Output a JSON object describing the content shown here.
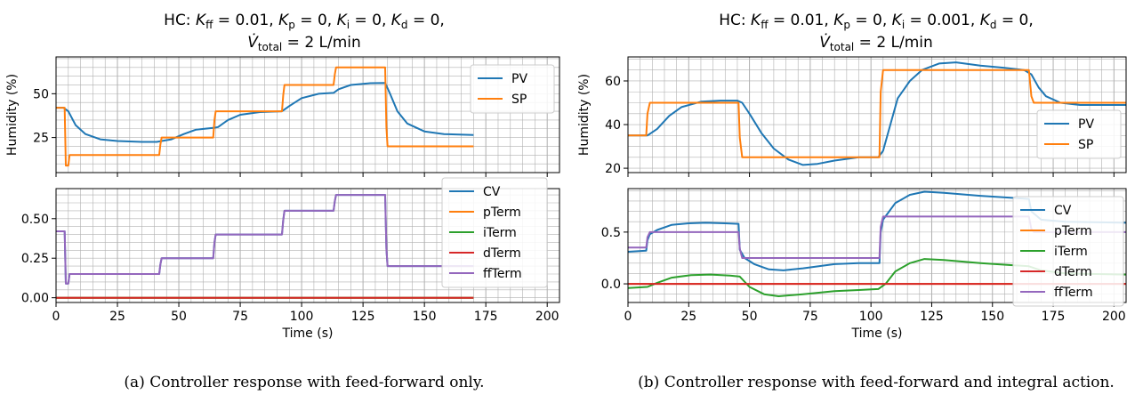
{
  "captions": [
    "(a) Controller response with feed-forward only.",
    "(b) Controller response with feed-forward and integral action."
  ],
  "colors": {
    "PV": "#1f77b4",
    "SP": "#ff7f0e",
    "CV": "#1f77b4",
    "pTerm": "#ff7f0e",
    "iTerm": "#2ca02c",
    "dTerm": "#d62728",
    "ffTerm": "#9467bd",
    "grid": "#b0b0b0"
  },
  "chart_data": [
    {
      "type": "line",
      "panel": "a-top",
      "title_line1": "HC: K_ff = 0.01, K_p = 0, K_i = 0, K_d = 0,",
      "title_line2": "V̇_total = 2 L/min",
      "ylabel": "Humidity (%)",
      "xlabel": "",
      "xlim": [
        0,
        205
      ],
      "ylim": [
        5,
        71
      ],
      "yticks": [
        25,
        50
      ],
      "grid": true,
      "legend_position": "upper right",
      "series": [
        {
          "name": "PV",
          "points": [
            [
              0,
              42
            ],
            [
              3,
              42
            ],
            [
              5,
              40
            ],
            [
              8,
              32
            ],
            [
              12,
              27
            ],
            [
              18,
              24
            ],
            [
              25,
              23
            ],
            [
              35,
              22.5
            ],
            [
              41,
              22.5
            ],
            [
              43,
              23
            ],
            [
              47,
              24
            ],
            [
              52,
              27
            ],
            [
              57,
              29.5
            ],
            [
              64,
              30.5
            ],
            [
              66,
              31
            ],
            [
              70,
              35
            ],
            [
              75,
              38
            ],
            [
              83,
              39.5
            ],
            [
              92,
              40
            ],
            [
              95,
              43
            ],
            [
              100,
              47.5
            ],
            [
              107,
              50
            ],
            [
              113,
              50.5
            ],
            [
              115,
              52.5
            ],
            [
              120,
              55
            ],
            [
              128,
              56
            ],
            [
              134,
              56.2
            ],
            [
              136,
              50
            ],
            [
              139,
              40
            ],
            [
              143,
              33
            ],
            [
              150,
              28.5
            ],
            [
              158,
              27
            ],
            [
              170,
              26.5
            ]
          ]
        },
        {
          "name": "SP",
          "points": [
            [
              0,
              42
            ],
            [
              3.5,
              42
            ],
            [
              4,
              9
            ],
            [
              5,
              9
            ],
            [
              5.5,
              15
            ],
            [
              42,
              15
            ],
            [
              42.5,
              21
            ],
            [
              43,
              25
            ],
            [
              64,
              25
            ],
            [
              64.5,
              35
            ],
            [
              65,
              40
            ],
            [
              92,
              40
            ],
            [
              92.5,
              49
            ],
            [
              93,
              55
            ],
            [
              113,
              55
            ],
            [
              113.5,
              61
            ],
            [
              114,
              65
            ],
            [
              134,
              65
            ],
            [
              134.5,
              31
            ],
            [
              135,
              20
            ],
            [
              170,
              20
            ]
          ]
        }
      ]
    },
    {
      "type": "line",
      "panel": "a-bottom",
      "xlabel": "Time (s)",
      "ylabel": "",
      "xlim": [
        0,
        205
      ],
      "ylim": [
        -0.03,
        0.69
      ],
      "xticks": [
        0,
        25,
        50,
        75,
        100,
        125,
        150,
        175,
        200
      ],
      "yticks": [
        0.0,
        0.25,
        0.5
      ],
      "ytick_labels": [
        "0.00",
        "0.25",
        "0.50"
      ],
      "grid": true,
      "legend_position": "upper right",
      "series": [
        {
          "name": "CV",
          "points": [
            [
              0,
              0.42
            ],
            [
              3.5,
              0.42
            ],
            [
              4,
              0.09
            ],
            [
              5,
              0.09
            ],
            [
              5.5,
              0.15
            ],
            [
              42,
              0.15
            ],
            [
              42.5,
              0.21
            ],
            [
              43,
              0.25
            ],
            [
              64,
              0.25
            ],
            [
              64.5,
              0.35
            ],
            [
              65,
              0.4
            ],
            [
              92,
              0.4
            ],
            [
              92.5,
              0.49
            ],
            [
              93,
              0.55
            ],
            [
              113,
              0.55
            ],
            [
              113.5,
              0.61
            ],
            [
              114,
              0.65
            ],
            [
              134,
              0.65
            ],
            [
              134.5,
              0.31
            ],
            [
              135,
              0.2
            ],
            [
              170,
              0.2
            ]
          ]
        },
        {
          "name": "pTerm",
          "points": [
            [
              0,
              0
            ],
            [
              170,
              0
            ]
          ]
        },
        {
          "name": "iTerm",
          "points": [
            [
              0,
              0
            ],
            [
              170,
              0
            ]
          ]
        },
        {
          "name": "dTerm",
          "points": [
            [
              0,
              0
            ],
            [
              170,
              0
            ]
          ]
        },
        {
          "name": "ffTerm",
          "points": [
            [
              0,
              0.42
            ],
            [
              3.5,
              0.42
            ],
            [
              4,
              0.09
            ],
            [
              5,
              0.09
            ],
            [
              5.5,
              0.15
            ],
            [
              42,
              0.15
            ],
            [
              42.5,
              0.21
            ],
            [
              43,
              0.25
            ],
            [
              64,
              0.25
            ],
            [
              64.5,
              0.35
            ],
            [
              65,
              0.4
            ],
            [
              92,
              0.4
            ],
            [
              92.5,
              0.49
            ],
            [
              93,
              0.55
            ],
            [
              113,
              0.55
            ],
            [
              113.5,
              0.61
            ],
            [
              114,
              0.65
            ],
            [
              134,
              0.65
            ],
            [
              134.5,
              0.31
            ],
            [
              135,
              0.2
            ],
            [
              170,
              0.2
            ]
          ]
        }
      ]
    },
    {
      "type": "line",
      "panel": "b-top",
      "title_line1": "HC: K_ff = 0.01, K_p = 0, K_i = 0.001, K_d = 0,",
      "title_line2": "V̇_total = 2 L/min",
      "ylabel": "Humidity (%)",
      "xlabel": "",
      "xlim": [
        0,
        205
      ],
      "ylim": [
        18,
        71
      ],
      "yticks": [
        20,
        40,
        60
      ],
      "grid": true,
      "legend_position": "center right",
      "series": [
        {
          "name": "PV",
          "points": [
            [
              0,
              35
            ],
            [
              8,
              35
            ],
            [
              12,
              38
            ],
            [
              17,
              44
            ],
            [
              22,
              48
            ],
            [
              30,
              50.5
            ],
            [
              38,
              51
            ],
            [
              45,
              51
            ],
            [
              47,
              50
            ],
            [
              50,
              45
            ],
            [
              55,
              36
            ],
            [
              60,
              29
            ],
            [
              66,
              24
            ],
            [
              72,
              21.5
            ],
            [
              78,
              22
            ],
            [
              85,
              23.5
            ],
            [
              95,
              25
            ],
            [
              103,
              25
            ],
            [
              105,
              28
            ],
            [
              108,
              40
            ],
            [
              111,
              52
            ],
            [
              116,
              60
            ],
            [
              121,
              65
            ],
            [
              128,
              68
            ],
            [
              135,
              68.5
            ],
            [
              145,
              67
            ],
            [
              155,
              66
            ],
            [
              163,
              65
            ],
            [
              166,
              63
            ],
            [
              169,
              57
            ],
            [
              172,
              53
            ],
            [
              178,
              50
            ],
            [
              186,
              49
            ],
            [
              205,
              49
            ]
          ]
        },
        {
          "name": "SP",
          "points": [
            [
              0,
              35
            ],
            [
              7.5,
              35
            ],
            [
              8,
              45
            ],
            [
              9,
              50
            ],
            [
              45.5,
              50
            ],
            [
              46,
              34
            ],
            [
              47,
              25
            ],
            [
              103.5,
              25
            ],
            [
              104,
              55
            ],
            [
              105,
              65
            ],
            [
              165,
              65
            ],
            [
              166,
              53
            ],
            [
              167,
              50
            ],
            [
              205,
              50
            ]
          ]
        }
      ]
    },
    {
      "type": "line",
      "panel": "b-bottom",
      "xlabel": "Time (s)",
      "ylabel": "",
      "xlim": [
        0,
        205
      ],
      "ylim": [
        -0.18,
        0.92
      ],
      "xticks": [
        0,
        25,
        50,
        75,
        100,
        125,
        150,
        175,
        200
      ],
      "yticks": [
        0.0,
        0.5
      ],
      "ytick_labels": [
        "0.0",
        "0.5"
      ],
      "grid": true,
      "legend_position": "center right",
      "series": [
        {
          "name": "CV",
          "points": [
            [
              0,
              0.31
            ],
            [
              7.5,
              0.32
            ],
            [
              8,
              0.42
            ],
            [
              9,
              0.48
            ],
            [
              12,
              0.52
            ],
            [
              18,
              0.57
            ],
            [
              25,
              0.585
            ],
            [
              32,
              0.59
            ],
            [
              40,
              0.585
            ],
            [
              45.5,
              0.58
            ],
            [
              46,
              0.33
            ],
            [
              48,
              0.25
            ],
            [
              52,
              0.19
            ],
            [
              58,
              0.14
            ],
            [
              64,
              0.13
            ],
            [
              72,
              0.15
            ],
            [
              85,
              0.19
            ],
            [
              95,
              0.2
            ],
            [
              103.5,
              0.2
            ],
            [
              104,
              0.5
            ],
            [
              105,
              0.62
            ],
            [
              110,
              0.78
            ],
            [
              116,
              0.86
            ],
            [
              122,
              0.89
            ],
            [
              130,
              0.88
            ],
            [
              145,
              0.85
            ],
            [
              165,
              0.82
            ],
            [
              166,
              0.7
            ],
            [
              170,
              0.62
            ],
            [
              180,
              0.6
            ],
            [
              205,
              0.59
            ]
          ]
        },
        {
          "name": "pTerm",
          "points": [
            [
              0,
              0
            ],
            [
              205,
              0
            ]
          ]
        },
        {
          "name": "iTerm",
          "points": [
            [
              0,
              -0.04
            ],
            [
              8,
              -0.03
            ],
            [
              12,
              0.01
            ],
            [
              18,
              0.06
            ],
            [
              26,
              0.085
            ],
            [
              34,
              0.09
            ],
            [
              42,
              0.08
            ],
            [
              46,
              0.07
            ],
            [
              50,
              -0.03
            ],
            [
              56,
              -0.1
            ],
            [
              62,
              -0.12
            ],
            [
              72,
              -0.1
            ],
            [
              85,
              -0.07
            ],
            [
              95,
              -0.06
            ],
            [
              103,
              -0.05
            ],
            [
              106,
              0.0
            ],
            [
              110,
              0.12
            ],
            [
              116,
              0.2
            ],
            [
              122,
              0.24
            ],
            [
              130,
              0.23
            ],
            [
              145,
              0.2
            ],
            [
              165,
              0.17
            ],
            [
              170,
              0.13
            ],
            [
              180,
              0.1
            ],
            [
              205,
              0.09
            ]
          ]
        },
        {
          "name": "dTerm",
          "points": [
            [
              0,
              0
            ],
            [
              205,
              0
            ]
          ]
        },
        {
          "name": "ffTerm",
          "points": [
            [
              0,
              0.35
            ],
            [
              7.5,
              0.35
            ],
            [
              8,
              0.45
            ],
            [
              9,
              0.5
            ],
            [
              45.5,
              0.5
            ],
            [
              46,
              0.34
            ],
            [
              47,
              0.25
            ],
            [
              103.5,
              0.25
            ],
            [
              104,
              0.55
            ],
            [
              105,
              0.65
            ],
            [
              165,
              0.65
            ],
            [
              166,
              0.53
            ],
            [
              167,
              0.5
            ],
            [
              205,
              0.5
            ]
          ]
        }
      ]
    }
  ]
}
